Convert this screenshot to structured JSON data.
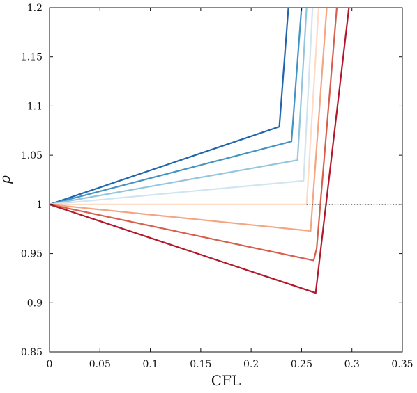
{
  "chart_data": {
    "type": "line",
    "title": "",
    "xlabel": "CFL",
    "ylabel": "ρ",
    "xlim": [
      0,
      0.35
    ],
    "ylim": [
      0.85,
      1.2
    ],
    "xticks": [
      0,
      0.05,
      0.1,
      0.15,
      0.2,
      0.25,
      0.3,
      0.35
    ],
    "xtick_labels": [
      "0",
      "0.05",
      "0.1",
      "0.15",
      "0.2",
      "0.25",
      "0.3",
      "0.35"
    ],
    "yticks": [
      0.85,
      0.9,
      0.95,
      1,
      1.05,
      1.1,
      1.15,
      1.2
    ],
    "ytick_labels": [
      "0.85",
      "0.9",
      "0.95",
      "1",
      "1.05",
      "1.1",
      "1.15",
      "1.2"
    ],
    "grid": false,
    "legend": "none",
    "series": [
      {
        "color": "#2166ac",
        "x": [
          0,
          0.228,
          0.237
        ],
        "y": [
          1.0,
          1.079,
          1.2
        ]
      },
      {
        "color": "#4393c3",
        "x": [
          0,
          0.24,
          0.25
        ],
        "y": [
          1.0,
          1.064,
          1.2
        ]
      },
      {
        "color": "#92c5de",
        "x": [
          0,
          0.246,
          0.255
        ],
        "y": [
          1.0,
          1.045,
          1.2
        ]
      },
      {
        "color": "#d1e5f0",
        "x": [
          0,
          0.252,
          0.261
        ],
        "y": [
          1.0,
          1.024,
          1.2
        ]
      },
      {
        "color": "#fddbc7",
        "x": [
          0,
          0.255,
          0.267
        ],
        "y": [
          1.0,
          1.0,
          1.2
        ]
      },
      {
        "color": "#f4a582",
        "x": [
          0,
          0.259,
          0.275
        ],
        "y": [
          1.0,
          0.973,
          1.2
        ]
      },
      {
        "color": "#d6604d",
        "x": [
          0,
          0.262,
          0.265,
          0.285
        ],
        "y": [
          1.0,
          0.943,
          0.955,
          1.2
        ]
      },
      {
        "color": "#b2182b",
        "x": [
          0,
          0.264,
          0.297
        ],
        "y": [
          1.0,
          0.91,
          1.2
        ]
      }
    ],
    "reference_line": {
      "style": "dotted",
      "color": "#111111",
      "y": 1.0,
      "x": [
        0.255,
        0.35
      ]
    }
  }
}
